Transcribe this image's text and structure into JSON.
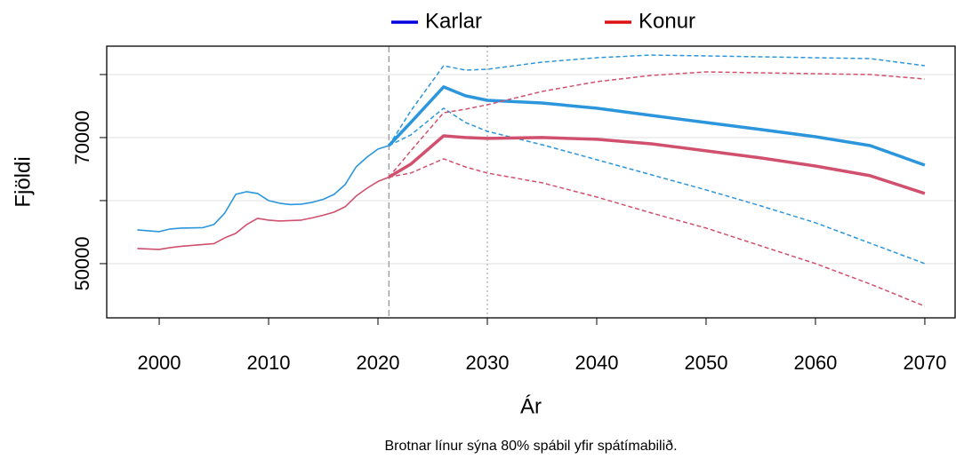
{
  "chart_data": {
    "type": "line",
    "xlabel": "Ár",
    "ylabel": "Fjöldi",
    "caption": "Brotnar línur sýna 80% spábil yfir spátímabilið.",
    "x": [
      1998,
      2000,
      2001,
      2002,
      2004,
      2005,
      2006,
      2007,
      2008,
      2009,
      2010,
      2011,
      2012,
      2013,
      2014,
      2015,
      2016,
      2017,
      2018,
      2019,
      2020,
      2021,
      2023,
      2026,
      2028,
      2030,
      2035,
      2040,
      2045,
      2050,
      2055,
      2060,
      2065,
      2070
    ],
    "series": [
      {
        "name": "Karlar",
        "color": "#2b96dc",
        "legend_color": "#0000dd",
        "values": [
          55360,
          55080,
          55500,
          55640,
          55710,
          56200,
          58030,
          60990,
          61410,
          61130,
          60000,
          59580,
          59370,
          59440,
          59720,
          60210,
          60990,
          62540,
          65350,
          66900,
          68170,
          68730,
          72390,
          78030,
          76620,
          75910,
          75490,
          74650,
          73520,
          72390,
          71270,
          70140,
          68730,
          65630
        ],
        "upper": [
          null,
          null,
          null,
          null,
          null,
          null,
          null,
          null,
          null,
          null,
          null,
          null,
          null,
          null,
          null,
          null,
          null,
          null,
          null,
          null,
          null,
          68730,
          74220,
          81400,
          80700,
          80840,
          81970,
          82670,
          83090,
          82950,
          82810,
          82670,
          82530,
          81400
        ],
        "lower": [
          null,
          null,
          null,
          null,
          null,
          null,
          null,
          null,
          null,
          null,
          null,
          null,
          null,
          null,
          null,
          null,
          null,
          null,
          null,
          null,
          null,
          68730,
          70420,
          74650,
          72390,
          70990,
          68870,
          66480,
          64090,
          61690,
          59160,
          56480,
          53240,
          50000
        ]
      },
      {
        "name": "Konur",
        "color": "#d0506e",
        "legend_color": "#dd1111",
        "values": [
          52400,
          52260,
          52540,
          52750,
          53030,
          53170,
          54090,
          54790,
          56200,
          57190,
          56910,
          56770,
          56840,
          56910,
          57260,
          57680,
          58170,
          59020,
          60710,
          61970,
          63030,
          63730,
          65780,
          70280,
          70000,
          69860,
          70000,
          69720,
          69010,
          67890,
          66760,
          65490,
          63950,
          61130
        ],
        "upper": [
          null,
          null,
          null,
          null,
          null,
          null,
          null,
          null,
          null,
          null,
          null,
          null,
          null,
          null,
          null,
          null,
          null,
          null,
          null,
          null,
          null,
          63730,
          67890,
          73940,
          74500,
          75210,
          77320,
          78870,
          79860,
          80420,
          80280,
          80140,
          80000,
          79290
        ],
        "lower": [
          null,
          null,
          null,
          null,
          null,
          null,
          null,
          null,
          null,
          null,
          null,
          null,
          null,
          null,
          null,
          null,
          null,
          null,
          null,
          null,
          null,
          63730,
          64370,
          66620,
          65350,
          64370,
          62820,
          60570,
          58030,
          55640,
          52820,
          50000,
          46760,
          43240
        ]
      }
    ],
    "vlines": [
      2021,
      2030
    ],
    "xlim": [
      1995.2,
      2072.85
    ],
    "xticks": [
      2000,
      2010,
      2020,
      2030,
      2040,
      2050,
      2060,
      2070
    ],
    "ylim": [
      41400,
      84500
    ],
    "yticks": [
      50000,
      70000
    ],
    "yticks_minor": [
      60000,
      80000
    ],
    "grid": true,
    "legend": "top"
  }
}
